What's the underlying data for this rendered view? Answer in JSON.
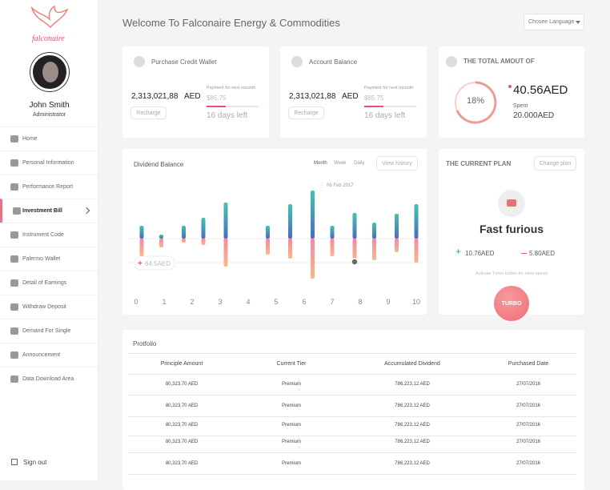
{
  "sidebar": {
    "logo": "falconaire",
    "user": {
      "name": "John Smith",
      "role": "Administrator"
    },
    "menu": [
      "Home",
      "Personal Information",
      "Performance Report",
      "Investment Bill",
      "Instrument Code",
      "Palermo Wallet",
      "Detail of Earnings",
      "Withdraw Deposit",
      "Demand For Single",
      "Announcement",
      "Data Download Area"
    ],
    "sign_out": "Sign out"
  },
  "header": {
    "title": "Welcome To Falconaire Energy & Commodities",
    "language": "Chosee Language"
  },
  "cards": [
    {
      "title": "Purchase Credit Wallet",
      "amount": "2,313,021,88",
      "currency": "AED",
      "payment_label": "Payment for next mounth",
      "payment": "$85.75",
      "days_left": "16 days left",
      "button": "Recharge"
    },
    {
      "title": "Account Balance",
      "amount": "2,313,021,88",
      "currency": "AED",
      "payment_label": "Payment for next mounth",
      "payment": "$85.75",
      "days_left": "16 days left",
      "button": "Recharge"
    }
  ],
  "total": {
    "title": "THE TOTAL AMOUT OF",
    "percent": "18%",
    "amount": "40.56AED",
    "spent_label": "Spent",
    "spent": "20.000AED"
  },
  "chart_data": {
    "type": "bar",
    "title": "Dividend Balance",
    "tabs": [
      "Month",
      "Week",
      "Daily"
    ],
    "button": "View history",
    "annotations": [
      "06 Feb 2017",
      "64.5AED"
    ],
    "x": [
      0.2,
      0.9,
      1.7,
      2.4,
      3.2,
      4.7,
      5.5,
      6.3,
      7.0,
      7.8,
      8.5,
      9.3,
      10.0
    ],
    "series": [
      {
        "color": "#45c3ad",
        "values": [
          16,
          5,
          16,
          26,
          45,
          16,
          43,
          60,
          16,
          32,
          20,
          31,
          43
        ]
      },
      {
        "color": "#f28aa6",
        "values": [
          -22,
          -11,
          -5,
          -8,
          -35,
          -20,
          -25,
          -50,
          -22,
          -32,
          -27,
          -17,
          -30
        ]
      }
    ],
    "xlim": [
      0,
      10
    ],
    "xticks": [
      0,
      1,
      2,
      3,
      4,
      5,
      6,
      7,
      8,
      9,
      10
    ],
    "ylim": [
      -62,
      73
    ]
  },
  "plan": {
    "title": "THE CURRENT PLAN",
    "button": "Change plan",
    "name": "Fast furious",
    "gain": "10.76AED",
    "loss": "5.80AED",
    "hint": "Activate Turbo botton for mine speed",
    "turbo": "TURBO"
  },
  "portfolio": {
    "title": "Protfolio",
    "columns": [
      "Principle Amount",
      "Current Tier",
      "Accumulated Dividend",
      "Purchased Date"
    ],
    "rows": [
      [
        "80,323,70 AED",
        "Premium",
        "786,223,12 AED",
        "27/07/2016"
      ],
      [
        "80,323,70 AED",
        "Premium",
        "786,223,12 AED",
        "27/07/2016"
      ],
      [
        "80,323,70 AED",
        "Premium",
        "786,223,12 AED",
        "27/07/2016"
      ],
      [
        "80,323,70 AED",
        "Premium",
        "786,223,12 AED",
        "27/07/2016"
      ],
      [
        "80,323,70 AED",
        "Premium",
        "786,223,12 AED",
        "27/07/2016"
      ]
    ]
  }
}
